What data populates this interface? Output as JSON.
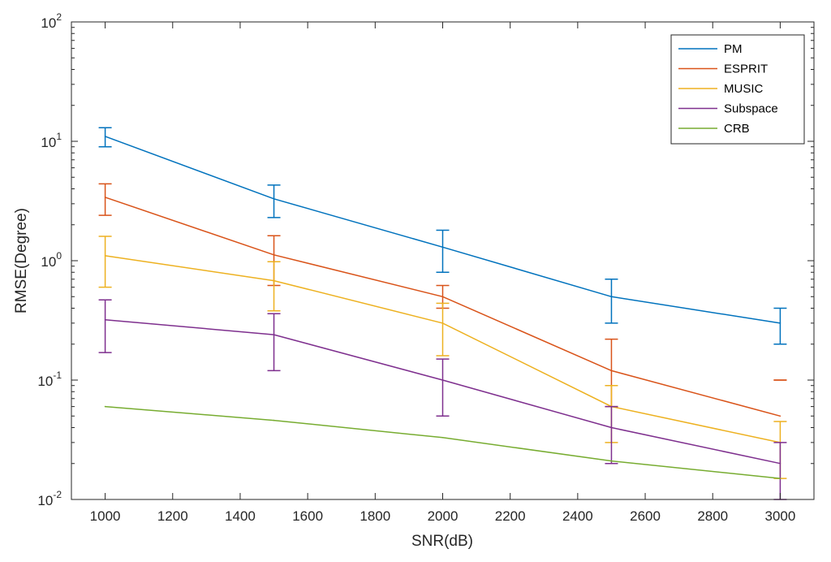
{
  "chart_data": {
    "type": "line",
    "xlabel": "SNR(dB)",
    "ylabel": "RMSE(Degree)",
    "xlim": [
      900,
      3100
    ],
    "ylim": [
      0.01,
      100
    ],
    "yscale": "log",
    "x": [
      1000,
      1500,
      2000,
      2500,
      3000
    ],
    "xticks": [
      1000,
      1200,
      1400,
      1600,
      1800,
      2000,
      2200,
      2400,
      2600,
      2800,
      3000
    ],
    "yticks": [
      {
        "base": "10",
        "exp": "-2"
      },
      {
        "base": "10",
        "exp": "-1"
      },
      {
        "base": "10",
        "exp": "0"
      },
      {
        "base": "10",
        "exp": "1"
      },
      {
        "base": "10",
        "exp": "2"
      }
    ],
    "grid": false,
    "legend_position": "top-right",
    "series": [
      {
        "name": "PM",
        "color": "#0072BD",
        "values": [
          11,
          3.3,
          1.3,
          0.5,
          0.3
        ],
        "err_low": [
          9,
          2.3,
          0.8,
          0.3,
          0.2
        ],
        "err_high": [
          13,
          4.3,
          1.8,
          0.7,
          0.4
        ]
      },
      {
        "name": "ESPRIT",
        "color": "#D95319",
        "values": [
          3.4,
          1.12,
          0.5,
          0.12,
          0.05
        ],
        "err_low": [
          2.4,
          0.62,
          0.4,
          0.06,
          0.1
        ],
        "err_high": [
          4.4,
          1.62,
          0.62,
          0.22,
          0.1
        ]
      },
      {
        "name": "MUSIC",
        "color": "#EDB120",
        "values": [
          1.1,
          0.68,
          0.3,
          0.06,
          0.03
        ],
        "err_low": [
          0.6,
          0.38,
          0.16,
          0.03,
          0.015
        ],
        "err_high": [
          1.6,
          0.98,
          0.44,
          0.09,
          0.045
        ]
      },
      {
        "name": "Subspace",
        "color": "#7E2F8E",
        "values": [
          0.32,
          0.24,
          0.1,
          0.04,
          0.02
        ],
        "err_low": [
          0.17,
          0.12,
          0.05,
          0.02,
          0.01
        ],
        "err_high": [
          0.47,
          0.36,
          0.15,
          0.06,
          0.03
        ]
      },
      {
        "name": "CRB",
        "color": "#77AC30",
        "values": [
          0.06,
          0.046,
          0.033,
          0.021,
          0.015
        ]
      }
    ]
  }
}
